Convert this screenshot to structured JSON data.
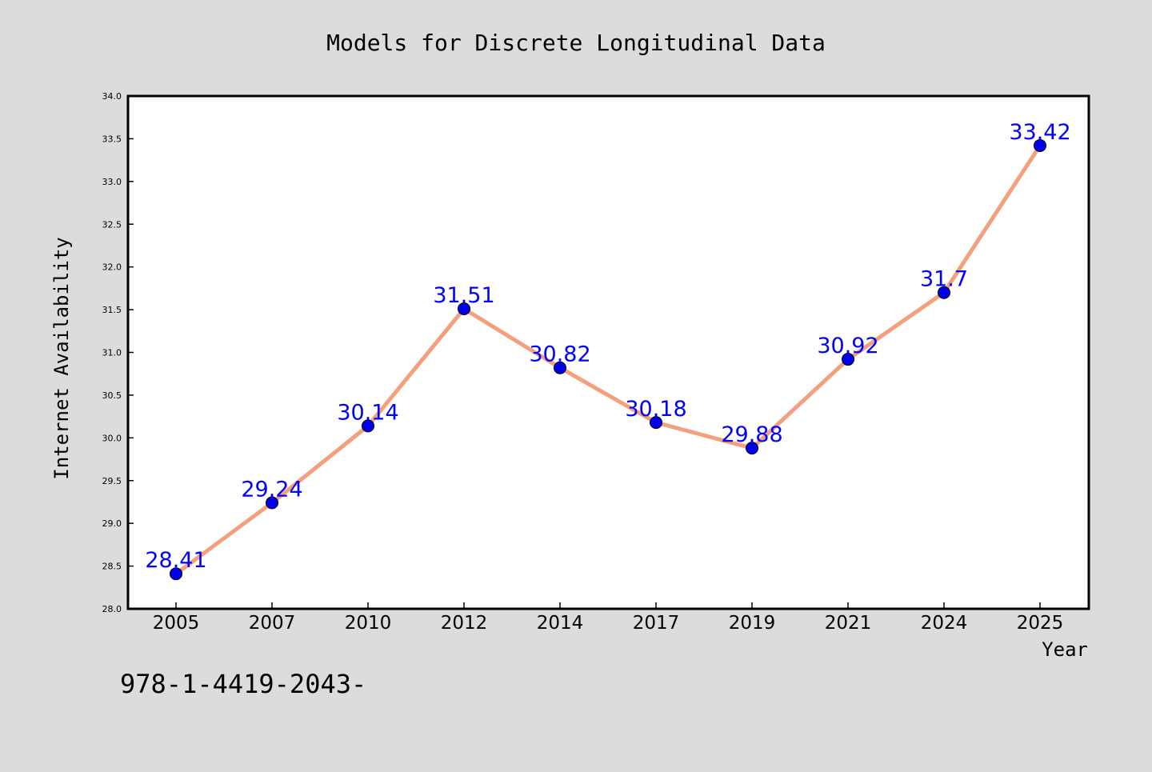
{
  "chart_data": {
    "type": "line",
    "title": "Models for Discrete Longitudinal Data",
    "xlabel": "Year",
    "ylabel": "Internet Availability",
    "categories": [
      "2005",
      "2007",
      "2010",
      "2012",
      "2014",
      "2017",
      "2019",
      "2021",
      "2024",
      "2025"
    ],
    "values": [
      28.41,
      29.24,
      30.14,
      31.51,
      30.82,
      30.18,
      29.88,
      30.92,
      31.7,
      33.42
    ],
    "data_labels": [
      "28.41",
      "29.24",
      "30.14",
      "31.51",
      "30.82",
      "30.18",
      "29.88",
      "30.92",
      "31.7",
      "33.42"
    ],
    "ylim": [
      28.0,
      34.0
    ],
    "yticks": [
      "28.0",
      "28.5",
      "29.0",
      "29.5",
      "30.0",
      "30.5",
      "31.0",
      "31.5",
      "32.0",
      "32.5",
      "33.0",
      "33.5",
      "34.0"
    ],
    "grid": false,
    "line_color": "#f4a07f",
    "marker_color": "#0000ee",
    "label_color": "#0000ff",
    "annotation": "978-1-4419-2043-"
  }
}
